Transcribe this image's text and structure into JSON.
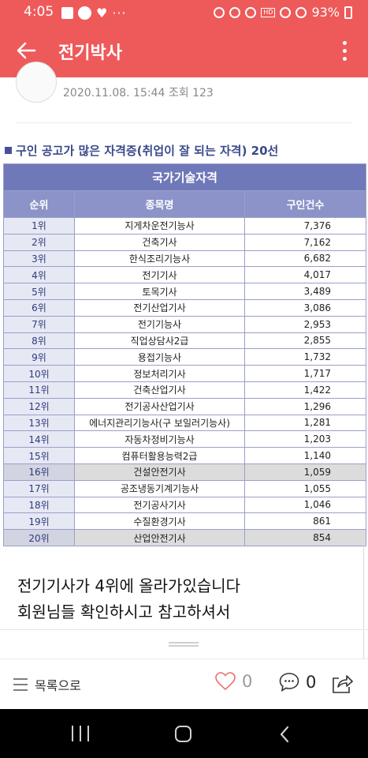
{
  "status_bar": {
    "time": "4:05",
    "dots": "···",
    "volte": "HD",
    "battery": "93%"
  },
  "app_bar": {
    "title": "전기박사"
  },
  "post": {
    "author": "",
    "meta": "2020.11.08. 15:44 조회 123"
  },
  "image": {
    "title": "구인 공고가 많은 자격증(취업이 잘 되는 자격) 20선",
    "table_caption": "국가기술자격",
    "columns": [
      "순위",
      "종목명",
      "구인건수"
    ],
    "rows": [
      {
        "rank": "1위",
        "name": "지게차운전기능사",
        "count": "7,376"
      },
      {
        "rank": "2위",
        "name": "건축기사",
        "count": "7,162"
      },
      {
        "rank": "3위",
        "name": "한식조리기능사",
        "count": "6,682"
      },
      {
        "rank": "4위",
        "name": "전기기사",
        "count": "4,017"
      },
      {
        "rank": "5위",
        "name": "토목기사",
        "count": "3,489"
      },
      {
        "rank": "6위",
        "name": "전기산업기사",
        "count": "3,086"
      },
      {
        "rank": "7위",
        "name": "전기기능사",
        "count": "2,953"
      },
      {
        "rank": "8위",
        "name": "직업상담사2급",
        "count": "2,855"
      },
      {
        "rank": "9위",
        "name": "용접기능사",
        "count": "1,732"
      },
      {
        "rank": "10위",
        "name": "정보처리기사",
        "count": "1,717"
      },
      {
        "rank": "11위",
        "name": "건축산업기사",
        "count": "1,422"
      },
      {
        "rank": "12위",
        "name": "전기공사산업기사",
        "count": "1,296"
      },
      {
        "rank": "13위",
        "name": "에너지관리기능사(구 보일러기능사)",
        "count": "1,281"
      },
      {
        "rank": "14위",
        "name": "자동차정비기능사",
        "count": "1,203"
      },
      {
        "rank": "15위",
        "name": "컴퓨터활용능력2급",
        "count": "1,140"
      },
      {
        "rank": "16위",
        "name": "건설안전기사",
        "count": "1,059"
      },
      {
        "rank": "17위",
        "name": "공조냉동기계기능사",
        "count": "1,055"
      },
      {
        "rank": "18위",
        "name": "전기공사기사",
        "count": "1,046"
      },
      {
        "rank": "19위",
        "name": "수질환경기사",
        "count": "861"
      },
      {
        "rank": "20위",
        "name": "산업안전기사",
        "count": "854"
      }
    ],
    "highlighted_rows": [
      16,
      20
    ]
  },
  "body": {
    "lines": [
      "전기기사가 4위에 올라가있습니다",
      "회원님들 확인하시고 참고하셔서"
    ]
  },
  "bottom_bar": {
    "list_label": "목록으로",
    "like_count": "0",
    "comment_count": "0"
  },
  "colors": {
    "accent": "#ee5a5a",
    "table_header": "#6f78b8",
    "table_subheader": "#8c93c8"
  }
}
